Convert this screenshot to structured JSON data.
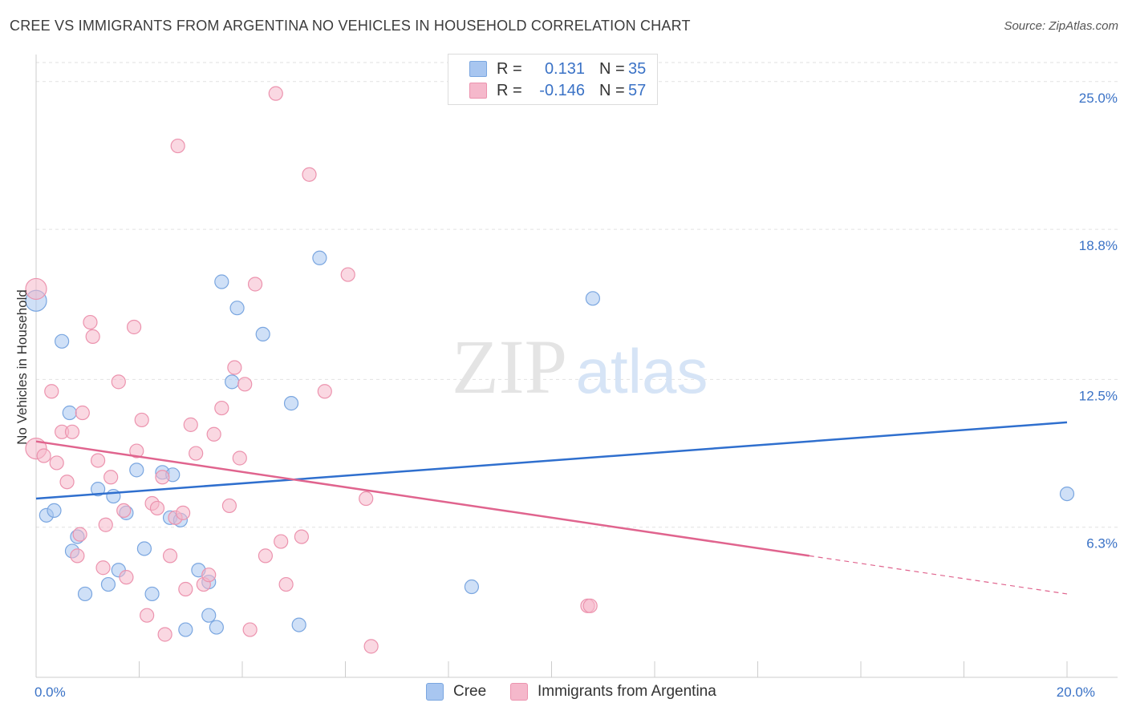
{
  "title": "CREE VS IMMIGRANTS FROM ARGENTINA NO VEHICLES IN HOUSEHOLD CORRELATION CHART",
  "source": "Source: ZipAtlas.com",
  "watermark": {
    "zip": "ZIP",
    "atlas": "atlas"
  },
  "legend": {
    "cree": {
      "r_label": "R =",
      "r_value": "0.131",
      "n_label": "N =",
      "n_value": "35",
      "color": "#a8c6f0"
    },
    "argentina": {
      "r_label": "R =",
      "r_value": "-0.146",
      "n_label": "N =",
      "n_value": "57",
      "color": "#f5b8cb"
    }
  },
  "bottom_legend": {
    "cree": "Cree",
    "argentina": "Immigrants from Argentina"
  },
  "chart_data": {
    "type": "scatter",
    "xlabel": "",
    "ylabel": "No Vehicles in Household",
    "xlim": [
      0,
      20
    ],
    "ylim": [
      0,
      25.8
    ],
    "x_ticks_labeled": [
      {
        "value": 0,
        "label": "0.0%"
      },
      {
        "value": 20,
        "label": "20.0%"
      }
    ],
    "y_ticks": [
      {
        "value": 6.3,
        "label": "6.3%"
      },
      {
        "value": 12.5,
        "label": "12.5%"
      },
      {
        "value": 18.8,
        "label": "18.8%"
      },
      {
        "value": 25.0,
        "label": "25.0%"
      }
    ],
    "grid": "horizontal dashed",
    "series": [
      {
        "name": "Cree",
        "color": "#a8c6f0",
        "stroke": "#7aa6e0",
        "trend": {
          "x": [
            0,
            20
          ],
          "y": [
            7.5,
            10.7
          ],
          "color": "#2f6fce"
        },
        "points": [
          [
            0.0,
            15.8
          ],
          [
            0.5,
            14.1
          ],
          [
            0.2,
            6.8
          ],
          [
            0.35,
            7.0
          ],
          [
            0.65,
            11.1
          ],
          [
            0.7,
            5.3
          ],
          [
            0.8,
            5.9
          ],
          [
            0.95,
            3.5
          ],
          [
            1.2,
            7.9
          ],
          [
            1.4,
            3.9
          ],
          [
            1.5,
            7.6
          ],
          [
            1.6,
            4.5
          ],
          [
            1.75,
            6.9
          ],
          [
            1.95,
            8.7
          ],
          [
            2.1,
            5.4
          ],
          [
            2.25,
            3.5
          ],
          [
            2.45,
            8.6
          ],
          [
            2.6,
            6.7
          ],
          [
            2.65,
            8.5
          ],
          [
            2.8,
            6.6
          ],
          [
            2.9,
            2.0
          ],
          [
            3.15,
            4.5
          ],
          [
            3.35,
            4.0
          ],
          [
            3.35,
            2.6
          ],
          [
            3.5,
            2.1
          ],
          [
            3.6,
            16.6
          ],
          [
            3.8,
            12.4
          ],
          [
            3.9,
            15.5
          ],
          [
            4.4,
            14.4
          ],
          [
            4.95,
            11.5
          ],
          [
            5.1,
            2.2
          ],
          [
            5.5,
            17.6
          ],
          [
            8.45,
            3.8
          ],
          [
            10.8,
            15.9
          ],
          [
            20.0,
            7.7
          ]
        ]
      },
      {
        "name": "Immigrants from Argentina",
        "color": "#f5b8cb",
        "stroke": "#ec93ae",
        "trend": {
          "x": [
            0,
            15
          ],
          "y": [
            9.9,
            5.1
          ],
          "dashed_to": {
            "x": 20,
            "y": 3.5
          },
          "color": "#e0648e"
        },
        "points": [
          [
            0.0,
            16.3
          ],
          [
            0.0,
            9.6
          ],
          [
            0.15,
            9.3
          ],
          [
            0.3,
            12.0
          ],
          [
            0.4,
            9.0
          ],
          [
            0.5,
            10.3
          ],
          [
            0.6,
            8.2
          ],
          [
            0.7,
            10.3
          ],
          [
            0.8,
            5.1
          ],
          [
            0.85,
            6.0
          ],
          [
            0.9,
            11.1
          ],
          [
            1.05,
            14.9
          ],
          [
            1.1,
            14.3
          ],
          [
            1.2,
            9.1
          ],
          [
            1.3,
            4.6
          ],
          [
            1.35,
            6.4
          ],
          [
            1.45,
            8.4
          ],
          [
            1.6,
            12.4
          ],
          [
            1.7,
            7.0
          ],
          [
            1.75,
            4.2
          ],
          [
            1.9,
            14.7
          ],
          [
            1.95,
            9.5
          ],
          [
            2.05,
            10.8
          ],
          [
            2.15,
            2.6
          ],
          [
            2.25,
            7.3
          ],
          [
            2.35,
            7.1
          ],
          [
            2.45,
            8.4
          ],
          [
            2.5,
            1.8
          ],
          [
            2.6,
            5.1
          ],
          [
            2.7,
            6.7
          ],
          [
            2.75,
            22.3
          ],
          [
            2.85,
            6.9
          ],
          [
            2.9,
            3.7
          ],
          [
            3.0,
            10.6
          ],
          [
            3.1,
            9.4
          ],
          [
            3.25,
            3.9
          ],
          [
            3.35,
            4.3
          ],
          [
            3.45,
            10.2
          ],
          [
            3.6,
            11.3
          ],
          [
            3.75,
            7.2
          ],
          [
            3.85,
            13.0
          ],
          [
            3.95,
            9.2
          ],
          [
            4.05,
            12.3
          ],
          [
            4.15,
            2.0
          ],
          [
            4.25,
            16.5
          ],
          [
            4.45,
            5.1
          ],
          [
            4.65,
            24.5
          ],
          [
            4.75,
            5.7
          ],
          [
            4.85,
            3.9
          ],
          [
            5.15,
            5.9
          ],
          [
            5.3,
            21.1
          ],
          [
            5.6,
            12.0
          ],
          [
            6.05,
            16.9
          ],
          [
            6.4,
            7.5
          ],
          [
            6.5,
            1.3
          ],
          [
            10.7,
            3.0
          ],
          [
            10.75,
            3.0
          ]
        ]
      }
    ]
  }
}
